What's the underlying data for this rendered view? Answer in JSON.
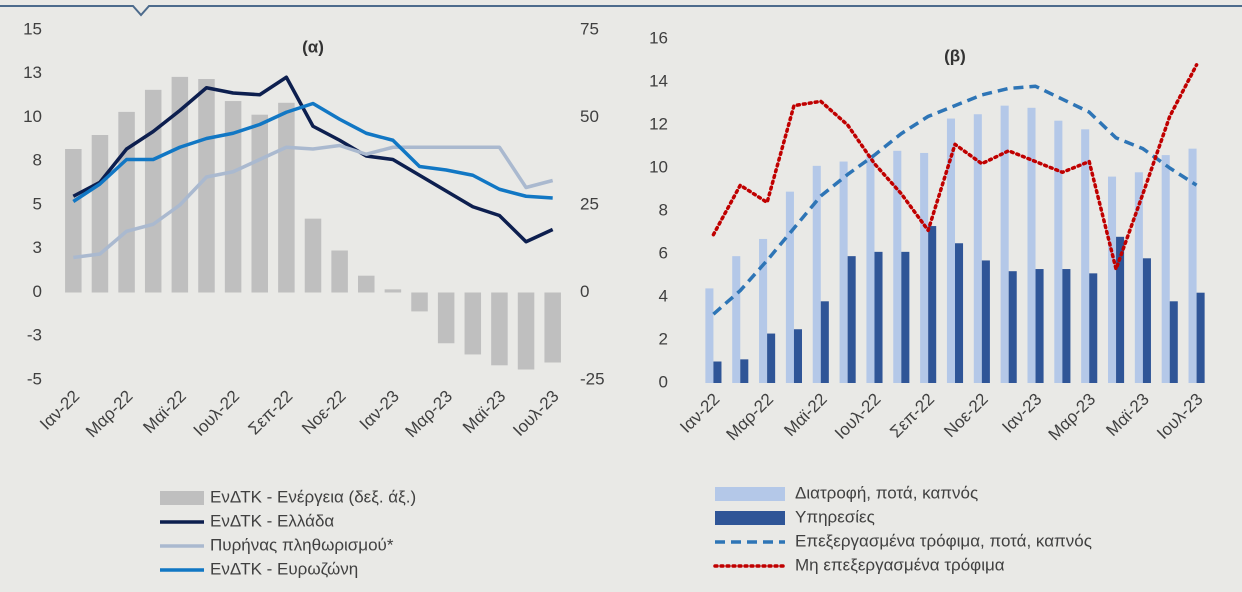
{
  "chart_data": [
    {
      "type": "combo",
      "title": "(α)",
      "categories": [
        "Ιαν-22",
        null,
        "Μαρ-22",
        null,
        "Μαϊ-22",
        null,
        "Ιουλ-22",
        null,
        "Σεπ-22",
        null,
        "Νοε-22",
        null,
        "Ιαν-23",
        null,
        "Μαρ-23",
        null,
        "Μαϊ-23",
        null,
        "Ιουλ-23"
      ],
      "ylim": [
        -5,
        15
      ],
      "yticks": [
        -5,
        {
          "value": -2.5,
          "label": "-3"
        },
        0,
        {
          "value": 2.5,
          "label": "3"
        },
        5,
        {
          "value": 7.5,
          "label": "8"
        },
        10,
        {
          "value": 12.5,
          "label": "13"
        },
        15
      ],
      "y2lim": [
        -25,
        75
      ],
      "y2ticks": [
        -25,
        0,
        25,
        50,
        75
      ],
      "series": [
        {
          "name": "ΕνΔΤΚ - Ενέργεια (δεξ. άξ.)",
          "type": "bar",
          "axis": "y2",
          "color": "#bfbfbf",
          "values": [
            41,
            45,
            51.6,
            57.9,
            61.6,
            61,
            54.7,
            50.8,
            54.2,
            21.1,
            12,
            4.8,
            0.9,
            -5.4,
            -14.5,
            -17.7,
            -20.8,
            -22,
            -20
          ]
        },
        {
          "name": "ΕνΔΤΚ - Ελλάδα",
          "type": "line",
          "color": "#0d1f4f",
          "values": [
            5.5,
            6.3,
            8.2,
            9.2,
            10.4,
            11.7,
            11.4,
            11.3,
            12.3,
            9.5,
            8.7,
            7.8,
            7.6,
            6.7,
            5.8,
            4.9,
            4.4,
            2.9,
            3.6
          ]
        },
        {
          "name": "Πυρήνας πληθωρισμού*",
          "type": "line",
          "color": "#aab9cf",
          "values": [
            2.0,
            2.2,
            3.5,
            3.9,
            5.0,
            6.6,
            6.9,
            7.6,
            8.3,
            8.2,
            8.4,
            7.9,
            8.3,
            8.3,
            8.3,
            8.3,
            8.3,
            6.0,
            6.4
          ]
        },
        {
          "name": "ΕνΔΤΚ - Ευρωζώνη",
          "type": "line",
          "color": "#1177c4",
          "values": [
            5.2,
            6.2,
            7.6,
            7.6,
            8.3,
            8.8,
            9.1,
            9.6,
            10.3,
            10.8,
            9.9,
            9.1,
            8.7,
            7.2,
            7.0,
            6.7,
            5.9,
            5.5,
            5.4
          ]
        }
      ]
    },
    {
      "type": "combo",
      "title": "(β)",
      "categories": [
        "Ιαν-22",
        null,
        "Μαρ-22",
        null,
        "Μαϊ-22",
        null,
        "Ιουλ-22",
        null,
        "Σεπ-22",
        null,
        "Νοε-22",
        null,
        "Ιαν-23",
        null,
        "Μαρ-23",
        null,
        "Μαϊ-23",
        null,
        "Ιουλ-23"
      ],
      "ylim": [
        0,
        16
      ],
      "yticks": [
        0,
        2,
        4,
        6,
        8,
        10,
        12,
        14,
        16
      ],
      "series": [
        {
          "name": "Διατροφή, ποτά, καπνός",
          "type": "bar",
          "color": "#b4c8e8",
          "values": [
            4.4,
            5.9,
            6.7,
            8.9,
            10.1,
            10.3,
            10.6,
            10.8,
            10.7,
            12.3,
            12.5,
            12.9,
            12.8,
            12.2,
            11.8,
            9.6,
            9.8,
            10.6,
            10.9
          ]
        },
        {
          "name": "Υπηρεσίες",
          "type": "bar",
          "color": "#2f5597",
          "values": [
            1.0,
            1.1,
            2.3,
            2.5,
            3.8,
            5.9,
            6.1,
            6.1,
            7.3,
            6.5,
            5.7,
            5.2,
            5.3,
            5.3,
            5.1,
            6.8,
            5.8,
            3.8,
            4.2
          ]
        },
        {
          "name": "Επεξεργασμένα τρόφιμα, ποτά, καπνός",
          "type": "line",
          "style": "dashed",
          "color": "#2e75b6",
          "values": [
            3.2,
            4.3,
            5.7,
            7.2,
            8.7,
            9.7,
            10.6,
            11.6,
            12.4,
            12.9,
            13.4,
            13.7,
            13.8,
            13.2,
            12.6,
            11.4,
            10.9,
            10.0,
            9.2
          ]
        },
        {
          "name": "Μη επεξεργασμένα τρόφιμα",
          "type": "line",
          "style": "dotted",
          "color": "#c00000",
          "values": [
            6.9,
            9.2,
            8.4,
            12.9,
            13.1,
            12.0,
            10.2,
            8.8,
            7.1,
            11.1,
            10.2,
            10.8,
            10.3,
            9.8,
            10.3,
            5.3,
            8.8,
            12.4,
            14.8
          ]
        }
      ]
    }
  ]
}
